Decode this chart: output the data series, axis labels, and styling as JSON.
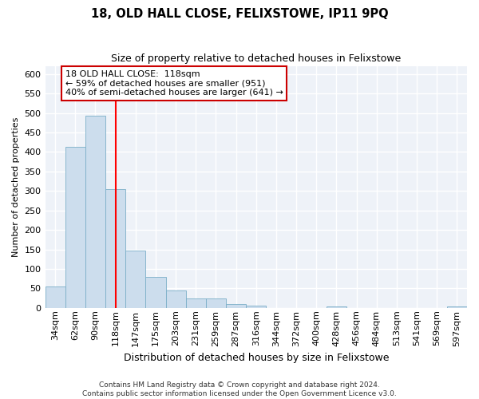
{
  "title": "18, OLD HALL CLOSE, FELIXSTOWE, IP11 9PQ",
  "subtitle": "Size of property relative to detached houses in Felixstowe",
  "xlabel": "Distribution of detached houses by size in Felixstowe",
  "ylabel": "Number of detached properties",
  "bar_color": "#ccdded",
  "bar_edge_color": "#7aaec8",
  "vline_x_index": 3,
  "vline_color": "red",
  "categories": [
    "34sqm",
    "62sqm",
    "90sqm",
    "118sqm",
    "147sqm",
    "175sqm",
    "203sqm",
    "231sqm",
    "259sqm",
    "287sqm",
    "316sqm",
    "344sqm",
    "372sqm",
    "400sqm",
    "428sqm",
    "456sqm",
    "484sqm",
    "513sqm",
    "541sqm",
    "569sqm",
    "597sqm"
  ],
  "values": [
    55,
    413,
    493,
    305,
    148,
    80,
    45,
    25,
    25,
    9,
    5,
    0,
    0,
    0,
    4,
    0,
    0,
    0,
    0,
    0,
    4
  ],
  "ylim": [
    0,
    620
  ],
  "yticks": [
    0,
    50,
    100,
    150,
    200,
    250,
    300,
    350,
    400,
    450,
    500,
    550,
    600
  ],
  "annotation_title": "18 OLD HALL CLOSE:  118sqm",
  "annotation_line1": "← 59% of detached houses are smaller (951)",
  "annotation_line2": "40% of semi-detached houses are larger (641) →",
  "annotation_box_color": "white",
  "annotation_box_edge": "#cc0000",
  "footer1": "Contains HM Land Registry data © Crown copyright and database right 2024.",
  "footer2": "Contains public sector information licensed under the Open Government Licence v3.0.",
  "plot_bg_color": "#eef2f8",
  "grid_color": "white",
  "title_fontsize": 10.5,
  "subtitle_fontsize": 9,
  "ylabel_fontsize": 8,
  "xlabel_fontsize": 9,
  "tick_fontsize": 8,
  "annotation_fontsize": 8,
  "footer_fontsize": 6.5
}
